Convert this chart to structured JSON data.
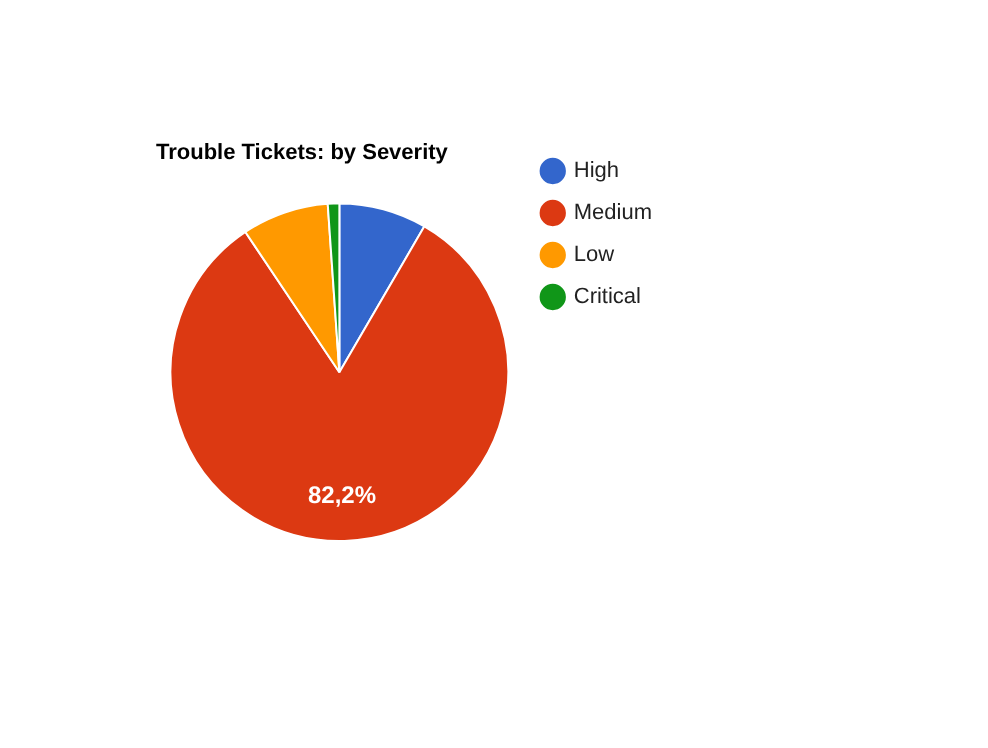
{
  "chart_data": {
    "type": "pie",
    "title": "Trouble Tickets: by Severity",
    "categories": [
      "High",
      "Medium",
      "Low",
      "Critical"
    ],
    "values": [
      8.4,
      82.2,
      8.3,
      1.1
    ],
    "value_labels": [
      null,
      "82,2%",
      null,
      null
    ],
    "colors": [
      "#3366cc",
      "#dc3912",
      "#ff9900",
      "#109618"
    ],
    "legend": "right"
  }
}
